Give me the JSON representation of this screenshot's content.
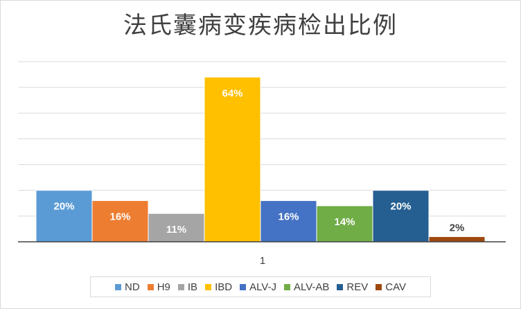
{
  "chart_data": {
    "type": "bar",
    "title": "法氏囊病变疾病检出比例",
    "categories": [
      "1"
    ],
    "series": [
      {
        "name": "ND",
        "values": [
          20
        ],
        "label": "20%",
        "color": "#5b9bd5"
      },
      {
        "name": "H9",
        "values": [
          16
        ],
        "label": "16%",
        "color": "#ed7d31"
      },
      {
        "name": "IB",
        "values": [
          11
        ],
        "label": "11%",
        "color": "#a5a5a5"
      },
      {
        "name": "IBD",
        "values": [
          64
        ],
        "label": "64%",
        "color": "#ffc000"
      },
      {
        "name": "ALV-J",
        "values": [
          16
        ],
        "label": "16%",
        "color": "#4472c4"
      },
      {
        "name": "ALV-AB",
        "values": [
          14
        ],
        "label": "14%",
        "color": "#70ad47"
      },
      {
        "name": "REV",
        "values": [
          20
        ],
        "label": "20%",
        "color": "#255e91"
      },
      {
        "name": "CAV",
        "values": [
          2
        ],
        "label": "2%",
        "color": "#9e480e"
      }
    ],
    "ylim": [
      0,
      70
    ],
    "grid": true,
    "legend_position": "bottom"
  }
}
